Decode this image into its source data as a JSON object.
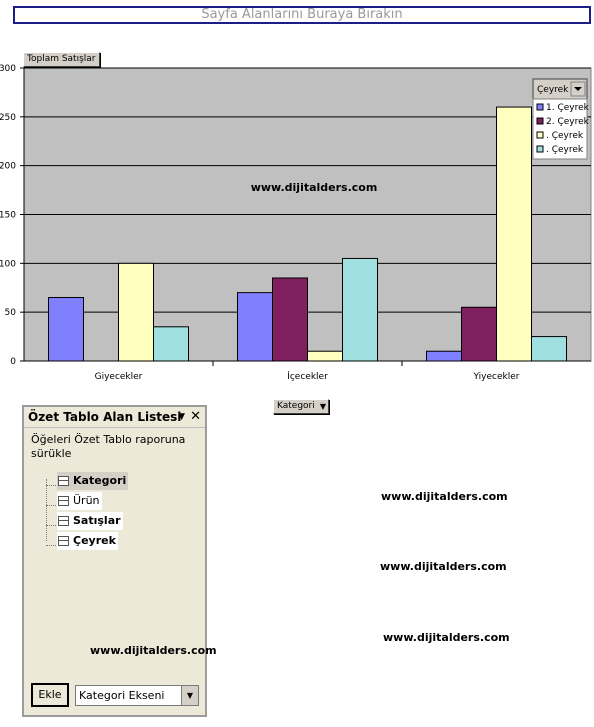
{
  "page_drop_zone": "Sayfa Alanlarını Buraya Bırakın",
  "data_field_button": "Toplam Satışlar",
  "category_field_button": "Kategori",
  "legend_field_button": "Çeyrek",
  "chart_data": {
    "type": "bar",
    "categories": [
      "Giyecekler",
      "İçecekler",
      "Yiyecekler"
    ],
    "series": [
      {
        "name": "1. Çeyrek",
        "values": [
          65,
          70,
          10
        ],
        "color": "#8080ff"
      },
      {
        "name": "2. Çeyrek",
        "values": [
          0,
          85,
          55
        ],
        "color": "#802060"
      },
      {
        "name": ". Çeyrek",
        "values": [
          100,
          10,
          260
        ],
        "color": "#ffffc0"
      },
      {
        "name": ". Çeyrek",
        "values": [
          35,
          105,
          25
        ],
        "color": "#a0e0e0"
      }
    ],
    "ylim": [
      0,
      300
    ],
    "yticks": [
      "0",
      "50",
      "100",
      "150",
      "200",
      "250",
      "300"
    ],
    "title": "",
    "xlabel": "",
    "ylabel": "",
    "grid": true,
    "legend": "top-right",
    "watermark": "www.dijitalders.com"
  },
  "field_list": {
    "title": "Özet Tablo Alan Listesi",
    "hint": "Öğeleri Özet Tablo raporuna sürükle",
    "fields": [
      "Kategori",
      "Ürün",
      "Satışlar",
      "Çeyrek"
    ],
    "add_button": "Ekle",
    "area_select": "Kategori Ekseni"
  },
  "watermarks": [
    "www.dijitalders.com",
    "www.dijitalders.com",
    "www.dijitalders.com",
    "www.dijitalders.com"
  ]
}
